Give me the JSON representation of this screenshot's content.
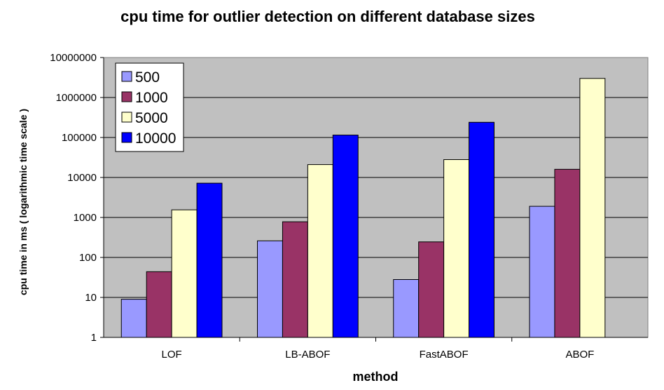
{
  "chart_data": {
    "type": "bar",
    "title": "cpu time for outlier detection on different database sizes",
    "xlabel": "method",
    "ylabel": "cpu time in ms ( logarithmic time scale )",
    "yscale": "log",
    "ylim": [
      1,
      10000000
    ],
    "yticks": [
      "1",
      "10",
      "100",
      "1000",
      "10000",
      "100000",
      "1000000",
      "10000000"
    ],
    "categories": [
      "LOF",
      "LB-ABOF",
      "FastABOF",
      "ABOF"
    ],
    "series": [
      {
        "name": "500",
        "color": "#9999ff",
        "values": [
          9,
          260,
          28,
          1900
        ]
      },
      {
        "name": "1000",
        "color": "#993366",
        "values": [
          44,
          780,
          245,
          16000
        ]
      },
      {
        "name": "5000",
        "color": "#ffffcc",
        "values": [
          1550,
          21000,
          28000,
          3000000
        ]
      },
      {
        "name": "10000",
        "color": "#0000ff",
        "values": [
          7200,
          115000,
          240000,
          null
        ]
      }
    ],
    "grid": true,
    "legend_position": "top-left",
    "plot_background": "#c0c0c0"
  }
}
